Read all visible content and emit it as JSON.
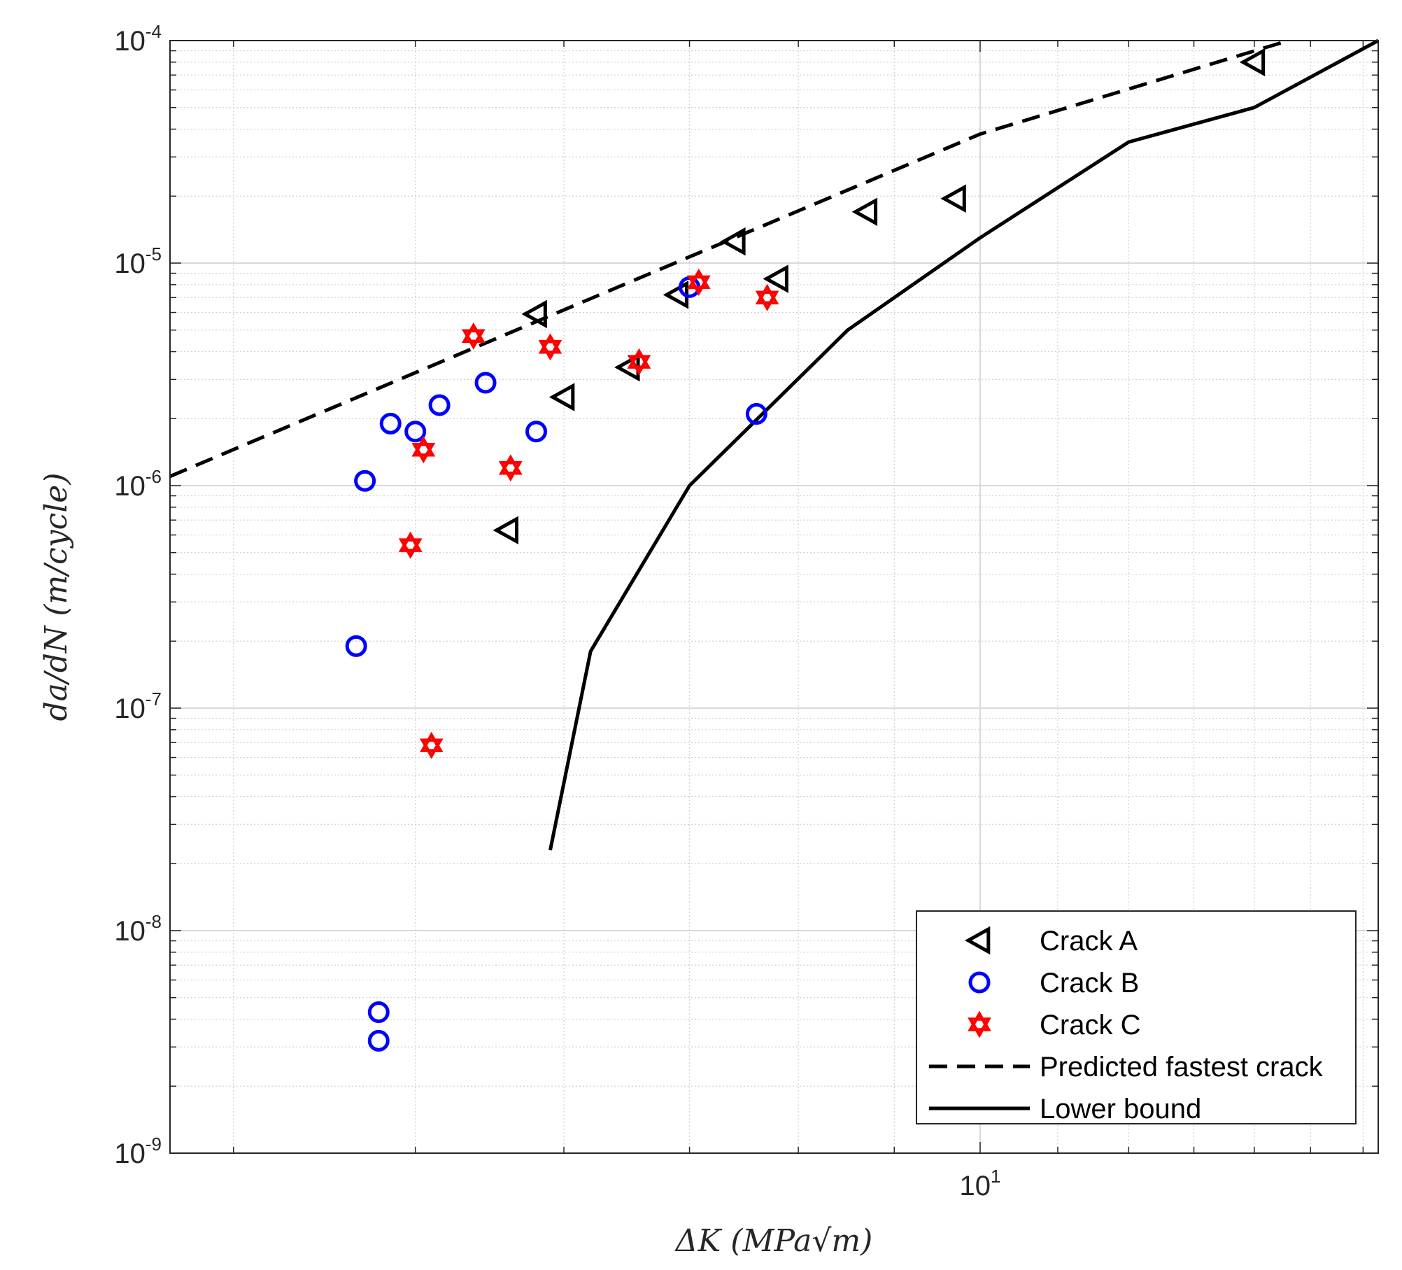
{
  "chart_data": {
    "type": "scatter",
    "x_scale": "log",
    "y_scale": "log",
    "xlim": [
      3.7,
      16.3
    ],
    "ylim": [
      1e-09,
      0.0001
    ],
    "grid": true,
    "minor_grid": true,
    "xlabel": "ΔK (MPa√m)",
    "ylabel": "da/dN (m/cycle)",
    "x_tick_labels": [
      {
        "value": 10,
        "base": "10",
        "exp": "1"
      }
    ],
    "y_tick_labels": [
      {
        "value": 0.0001,
        "base": "10",
        "exp": "-4"
      },
      {
        "value": 1e-05,
        "base": "10",
        "exp": "-5"
      },
      {
        "value": 1e-06,
        "base": "10",
        "exp": "-6"
      },
      {
        "value": 1e-07,
        "base": "10",
        "exp": "-7"
      },
      {
        "value": 1e-08,
        "base": "10",
        "exp": "-8"
      },
      {
        "value": 1e-09,
        "base": "10",
        "exp": "-9"
      }
    ],
    "legend_position": "bottom-right",
    "series": [
      {
        "name": "Crack A",
        "kind": "marker",
        "marker": "triangle-left",
        "color": "#000000",
        "points": [
          [
            5.6,
            6.3e-07
          ],
          [
            5.8,
            5.9e-06
          ],
          [
            6.0,
            2.5e-06
          ],
          [
            6.5,
            3.4e-06
          ],
          [
            6.9,
            7.2e-06
          ],
          [
            7.4,
            1.25e-05
          ],
          [
            7.8,
            8.5e-06
          ],
          [
            8.7,
            1.7e-05
          ],
          [
            9.7,
            1.95e-05
          ],
          [
            14.0,
            8e-05
          ]
        ]
      },
      {
        "name": "Crack B",
        "kind": "marker",
        "marker": "circle",
        "color": "#0000ff",
        "points": [
          [
            4.65,
            1.9e-07
          ],
          [
            4.7,
            1.05e-06
          ],
          [
            4.78,
            4.3e-09
          ],
          [
            4.78,
            3.2e-09
          ],
          [
            4.85,
            1.9e-06
          ],
          [
            5.0,
            1.75e-06
          ],
          [
            5.15,
            2.3e-06
          ],
          [
            5.45,
            2.9e-06
          ],
          [
            5.8,
            1.75e-06
          ],
          [
            7.0,
            7.8e-06
          ],
          [
            7.6,
            2.1e-06
          ]
        ]
      },
      {
        "name": "Crack C",
        "kind": "marker",
        "marker": "hexagram",
        "color": "#ff0000",
        "points": [
          [
            4.97,
            5.4e-07
          ],
          [
            5.05,
            1.45e-06
          ],
          [
            5.1,
            6.8e-08
          ],
          [
            5.37,
            4.7e-06
          ],
          [
            5.62,
            1.2e-06
          ],
          [
            5.9,
            4.2e-06
          ],
          [
            6.58,
            3.6e-06
          ],
          [
            7.08,
            8.2e-06
          ],
          [
            7.7,
            7e-06
          ]
        ]
      },
      {
        "name": "Predicted fastest crack",
        "kind": "line",
        "dash": "dashed",
        "color": "#000000",
        "points": [
          [
            3.7,
            1.1e-06
          ],
          [
            10.0,
            3.8e-05
          ],
          [
            14.6,
            0.0001
          ]
        ]
      },
      {
        "name": "Lower bound",
        "kind": "line",
        "dash": "solid",
        "color": "#000000",
        "points": [
          [
            5.9,
            2.3e-08
          ],
          [
            6.2,
            1.8e-07
          ],
          [
            7.0,
            1e-06
          ],
          [
            8.5,
            5e-06
          ],
          [
            10.0,
            1.3e-05
          ],
          [
            12.0,
            3.5e-05
          ],
          [
            14.0,
            5e-05
          ],
          [
            16.3,
            0.0001
          ]
        ]
      }
    ]
  }
}
